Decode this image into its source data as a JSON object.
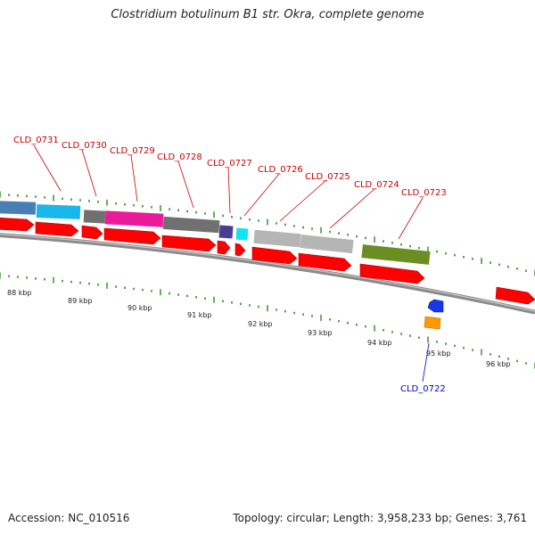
{
  "title": "Clostridium botulinum B1 str. Okra, complete genome",
  "footer": {
    "accession": "Accession: NC_010516",
    "summary": "Topology: circular; Length: 3,958,233 bp; Genes: 3,761"
  },
  "colors": {
    "backbone": "#8a8a8a",
    "tick": "#2e8b22",
    "forward_gene": "#ff0000",
    "label_forward": "#cc0000",
    "label_reverse": "#0000cc"
  },
  "kbp_labels": [
    "88 kbp",
    "89 kbp",
    "90 kbp",
    "91 kbp",
    "92 kbp",
    "93 kbp",
    "94 kbp",
    "95 kbp",
    "96 kbp"
  ],
  "gene_labels": [
    {
      "text": "CLD_0731",
      "color": "#cc0000"
    },
    {
      "text": "CLD_0730",
      "color": "#cc0000"
    },
    {
      "text": "CLD_0729",
      "color": "#cc0000"
    },
    {
      "text": "CLD_0728",
      "color": "#cc0000"
    },
    {
      "text": "CLD_0727",
      "color": "#cc0000"
    },
    {
      "text": "CLD_0726",
      "color": "#cc0000"
    },
    {
      "text": "CLD_0725",
      "color": "#cc0000"
    },
    {
      "text": "CLD_0724",
      "color": "#cc0000"
    },
    {
      "text": "CLD_0723",
      "color": "#cc0000"
    },
    {
      "text": "CLD_0722",
      "color": "#0000cc"
    }
  ],
  "cog_colors": [
    "#4a7fb5",
    "#1ab7ea",
    "#707070",
    "#ea1a9a",
    "#707070",
    "#4b3c96",
    "#11e4ee",
    "#b5b5b5",
    "#b5b5b5",
    "#6b8e23"
  ],
  "reverse_colors": [
    "#1838e8",
    "#ff9900"
  ]
}
